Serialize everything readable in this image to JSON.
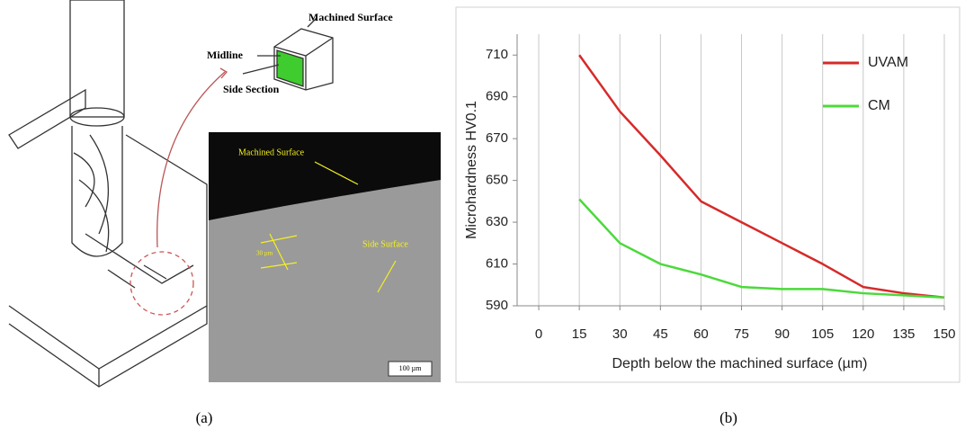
{
  "figure": {
    "panel_a": {
      "label": "(a)",
      "machined_surface": "Machined Surface",
      "midline": "Midline",
      "side_section": "Side Section",
      "micro_machined_surface": "Machined Surface",
      "side_surface": "Side Surface",
      "spacing": "30 µm",
      "scale_bar": "100 µm"
    },
    "panel_b_label": "(b)"
  },
  "chart_data": {
    "type": "line",
    "xlabel": "Depth below the machined surface (µm)",
    "ylabel": "Microhardness HV0.1",
    "x": [
      15,
      30,
      45,
      60,
      75,
      90,
      105,
      120,
      135,
      150
    ],
    "series": [
      {
        "name": "UVAM",
        "color": "#d62a2a",
        "values": [
          710,
          683,
          662,
          640,
          630,
          620,
          610,
          599,
          596,
          594
        ]
      },
      {
        "name": "CM",
        "color": "#4cd93a",
        "values": [
          641,
          620,
          610,
          605,
          599,
          598,
          598,
          596,
          595,
          594
        ]
      }
    ],
    "xlim": [
      -8,
      150
    ],
    "xticks": [
      0,
      15,
      30,
      45,
      60,
      75,
      90,
      105,
      120,
      135,
      150
    ],
    "ylim": [
      590,
      720
    ],
    "yticks": [
      590,
      610,
      630,
      650,
      670,
      690,
      710
    ],
    "grid": "x",
    "legend": "upper right"
  }
}
